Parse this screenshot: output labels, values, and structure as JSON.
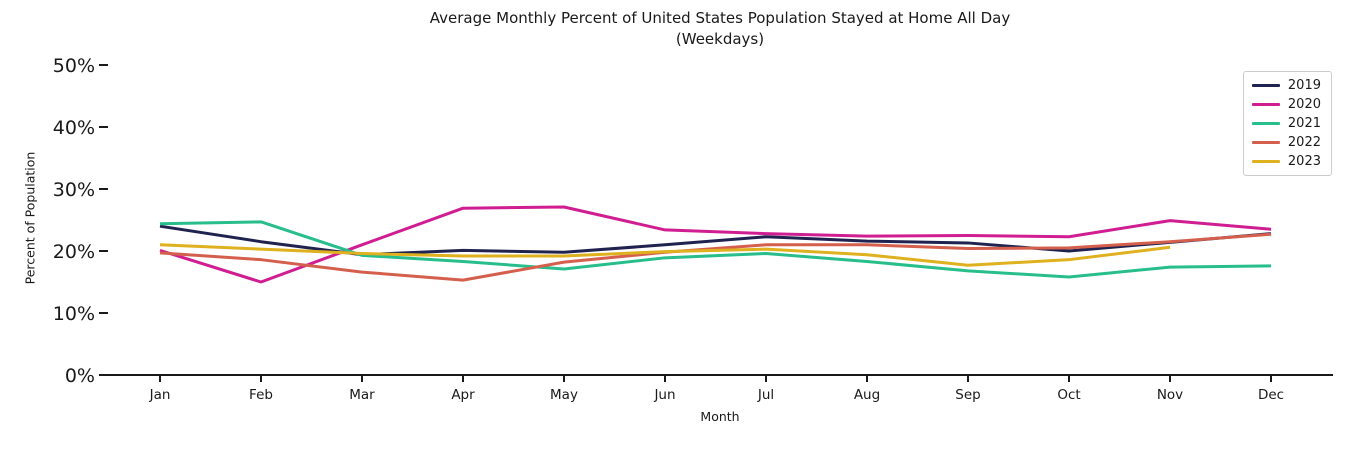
{
  "chart_data": {
    "type": "line",
    "title": "Average Monthly Percent of United States Population Stayed at Home All Day",
    "subtitle": "(Weekdays)",
    "xlabel": "Month",
    "ylabel": "Percent of Population",
    "categories": [
      "Jan",
      "Feb",
      "Mar",
      "Apr",
      "May",
      "Jun",
      "Jul",
      "Aug",
      "Sep",
      "Oct",
      "Nov",
      "Dec"
    ],
    "y_ticks": [
      {
        "value": 0,
        "label": "0%"
      },
      {
        "value": 10,
        "label": "10%"
      },
      {
        "value": 20,
        "label": "20%"
      },
      {
        "value": 30,
        "label": "30%"
      },
      {
        "value": 40,
        "label": "40%"
      },
      {
        "value": 50,
        "label": "50%"
      }
    ],
    "ylim": [
      0,
      52
    ],
    "grid": false,
    "legend_position": "upper right",
    "axis_color": "#1a1a1a",
    "series": [
      {
        "name": "2019",
        "color": "#20234F",
        "values": [
          24.0,
          21.5,
          19.4,
          20.1,
          19.8,
          21.0,
          22.3,
          21.6,
          21.3,
          20.0,
          21.4,
          22.8
        ]
      },
      {
        "name": "2020",
        "color": "#D01E92",
        "values": [
          20.1,
          15.0,
          21.0,
          26.9,
          27.1,
          23.4,
          22.8,
          22.4,
          22.5,
          22.3,
          24.9,
          23.5
        ]
      },
      {
        "name": "2021",
        "color": "#28BE8C",
        "values": [
          24.4,
          24.7,
          19.3,
          18.3,
          17.1,
          18.9,
          19.6,
          18.3,
          16.8,
          15.8,
          17.4,
          17.6
        ]
      },
      {
        "name": "2022",
        "color": "#D55F4D",
        "values": [
          19.7,
          18.6,
          16.6,
          15.3,
          18.2,
          19.8,
          21.0,
          21.0,
          20.4,
          20.5,
          21.5,
          22.7
        ]
      },
      {
        "name": "2023",
        "color": "#DFB11F",
        "values": [
          21.0,
          20.3,
          19.6,
          19.2,
          19.2,
          19.9,
          20.3,
          19.4,
          17.7,
          18.6,
          20.6,
          null
        ]
      }
    ]
  }
}
